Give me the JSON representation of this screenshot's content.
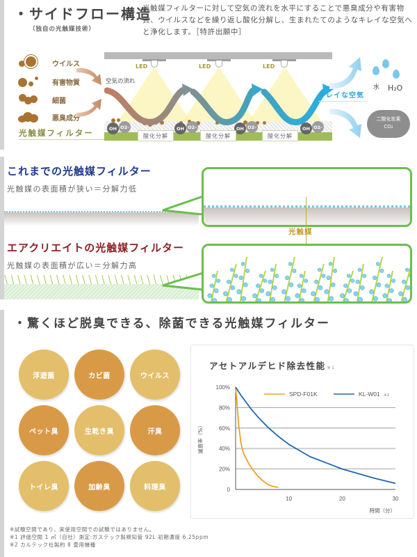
{
  "colors": {
    "sidebar_gray": "#d4d4d4",
    "old_title": "#1f3a8a",
    "new_title": "#8e1f22",
    "bubble_border": "#6cbd4f",
    "catalyst_label": "#c49a28",
    "circle_light": "#e3bf6c",
    "circle_dark": "#d99a48",
    "clean_air": "#2ba7d8",
    "series_spd": "#f0a020",
    "series_kl": "#1f66b0"
  },
  "section1": {
    "title": "・サイドフロー構造",
    "subtitle": "（独自の光触媒技術）",
    "description": "光触媒フィルターに対して空気の流れを水平にすることで悪臭成分や有害物質、ウイルスなどを繰り返し酸化分解し、生まれたてのようなキレイな空気へと浄化します。［特許出願中］",
    "particles": [
      {
        "label": "ウイルス",
        "icon": "virus-icon"
      },
      {
        "label": "有害物質",
        "icon": "harmful-substance-icon"
      },
      {
        "label": "細菌",
        "icon": "bacteria-icon"
      },
      {
        "label": "悪臭成分",
        "icon": "odor-icon"
      }
    ],
    "filter_label": "光触媒フィルター",
    "air_flow_label": "空気の流れ",
    "led_labels": [
      "LED",
      "LED",
      "LED"
    ],
    "radicals": {
      "oh": "OH",
      "o2": "O2-"
    },
    "decomposition_tags": [
      "酸化分解",
      "酸化分解",
      "酸化分解"
    ],
    "clean_air_label": "キレイな空気",
    "water_label": "水",
    "h2o_label": "H₂O",
    "co2_label_line1": "二酸化炭素",
    "co2_label_line2": "CO₂"
  },
  "section2": {
    "old_title": "これまでの光触媒フィルター",
    "old_description": "光触媒の表面積が狭い＝分解力低",
    "catalyst_label": "光触媒",
    "new_title": "エアクリエイトの光触媒フィルター",
    "new_description": "光触媒の表面積が広い＝分解力高"
  },
  "section3": {
    "title": "・驚くほど脱臭できる、除菌できる光触媒フィルター",
    "targets": [
      {
        "label": "浮遊菌",
        "tone": "light"
      },
      {
        "label": "カビ菌",
        "tone": "dark"
      },
      {
        "label": "ウイルス",
        "tone": "light"
      },
      {
        "label": "ペット臭",
        "tone": "dark"
      },
      {
        "label": "生乾き臭",
        "tone": "light"
      },
      {
        "label": "汗臭",
        "tone": "dark"
      },
      {
        "label": "トイレ臭",
        "tone": "light"
      },
      {
        "label": "加齢臭",
        "tone": "dark"
      },
      {
        "label": "料理臭",
        "tone": "light"
      }
    ],
    "footnotes": [
      "※試験空間であり、実使用空間での試験ではありません。",
      "※1 評価空間 1 ㎥（自社）測定:ガステック製検知管 92L 初期濃度 6.25ppm",
      "※2 カルテック社製約 8 畳用機種"
    ]
  },
  "chart_data": {
    "type": "line",
    "title": "アセトアルデヒド除去性能",
    "title_note": "※1",
    "xlabel": "時間（分）",
    "ylabel": "減衰率（%）",
    "xlim": [
      0,
      30
    ],
    "ylim": [
      0,
      100
    ],
    "x_ticks": [
      10,
      20,
      30
    ],
    "y_ticks": [
      0,
      20,
      40,
      60,
      80,
      100
    ],
    "y_tick_labels": [
      "0",
      "20%",
      "40%",
      "60%",
      "80%",
      "100%"
    ],
    "grid": true,
    "legend_position": "top-right",
    "series": [
      {
        "name": "SPD-F01K",
        "note": "",
        "color": "#f0a020",
        "x": [
          0,
          0.3,
          0.6,
          1.0,
          1.5,
          2.0,
          2.5,
          3.0,
          4.0,
          5.0,
          6.0,
          7.0,
          8.0
        ],
        "y": [
          100,
          82,
          62,
          45,
          35,
          30,
          25,
          21,
          14,
          9,
          5,
          3,
          2
        ]
      },
      {
        "name": "KL-W01",
        "note": "※2",
        "color": "#1f66b0",
        "x": [
          0,
          1,
          2,
          3,
          4,
          6,
          8,
          10,
          12,
          14,
          16,
          18,
          20,
          22,
          24,
          26,
          28,
          30
        ],
        "y": [
          100,
          92,
          85,
          78,
          72,
          61,
          52,
          44,
          38,
          32,
          28,
          24,
          20,
          17,
          14,
          11,
          8.5,
          6
        ]
      }
    ]
  }
}
